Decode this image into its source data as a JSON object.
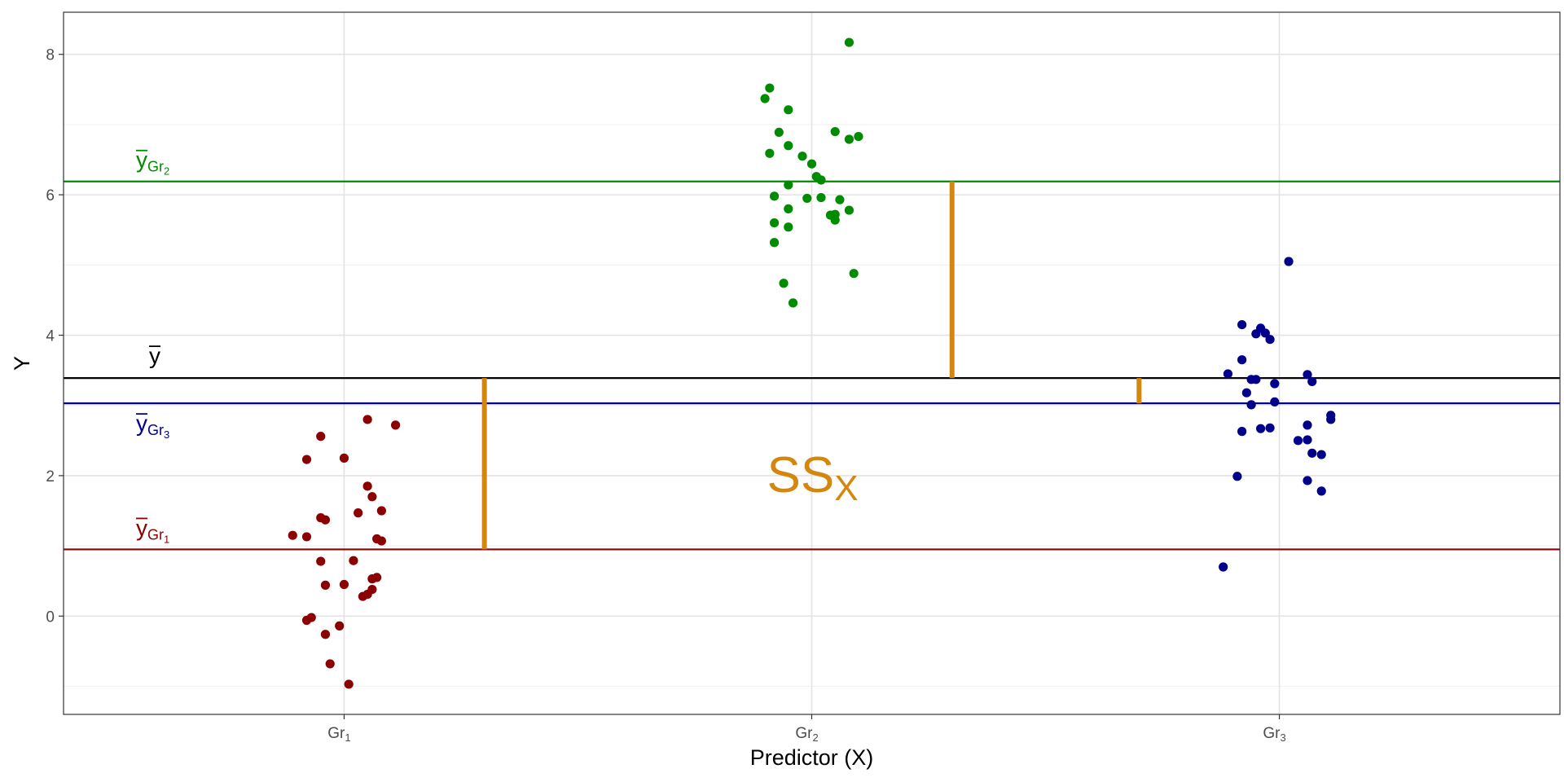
{
  "chart_data": {
    "type": "scatter",
    "title": "",
    "xlabel": "Predictor (X)",
    "ylabel": "Y",
    "ylim": [
      -1.4,
      8.6
    ],
    "yticks": [
      0,
      2,
      4,
      6,
      8
    ],
    "grid": true,
    "categories": [
      {
        "base": "Gr",
        "sub": "1"
      },
      {
        "base": "Gr",
        "sub": "2"
      },
      {
        "base": "Gr",
        "sub": "3"
      }
    ],
    "grand_mean": {
      "value": 3.39,
      "color": "#000000",
      "label": "y"
    },
    "groups": [
      {
        "id": "Gr1",
        "color": "#8B0000",
        "mean": 0.95,
        "mean_label": {
          "base": "y",
          "sub": "Gr",
          "subsub": "1"
        },
        "points": [
          [
            -0.11,
            1.15
          ],
          [
            -0.08,
            1.13
          ],
          [
            0.05,
            2.8
          ],
          [
            0.11,
            2.72
          ],
          [
            -0.08,
            2.23
          ],
          [
            -0.05,
            2.56
          ],
          [
            0.0,
            2.25
          ],
          [
            0.05,
            1.85
          ],
          [
            0.06,
            1.7
          ],
          [
            -0.05,
            1.4
          ],
          [
            -0.04,
            1.37
          ],
          [
            0.03,
            1.47
          ],
          [
            0.08,
            1.5
          ],
          [
            0.07,
            1.1
          ],
          [
            0.08,
            1.07
          ],
          [
            -0.05,
            0.78
          ],
          [
            0.02,
            0.79
          ],
          [
            -0.04,
            0.44
          ],
          [
            0.0,
            0.45
          ],
          [
            0.06,
            0.53
          ],
          [
            0.07,
            0.55
          ],
          [
            0.04,
            0.28
          ],
          [
            0.05,
            0.31
          ],
          [
            0.06,
            0.38
          ],
          [
            -0.08,
            -0.06
          ],
          [
            -0.07,
            -0.02
          ],
          [
            -0.01,
            -0.14
          ],
          [
            -0.04,
            -0.26
          ],
          [
            -0.03,
            -0.68
          ],
          [
            0.01,
            -0.97
          ]
        ]
      },
      {
        "id": "Gr2",
        "color": "#008B00",
        "mean": 6.19,
        "mean_label": {
          "base": "y",
          "sub": "Gr",
          "subsub": "2"
        },
        "points": [
          [
            0.08,
            8.17
          ],
          [
            -0.09,
            7.52
          ],
          [
            -0.1,
            7.37
          ],
          [
            -0.05,
            7.21
          ],
          [
            0.05,
            6.9
          ],
          [
            -0.07,
            6.89
          ],
          [
            0.1,
            6.83
          ],
          [
            0.08,
            6.79
          ],
          [
            -0.05,
            6.7
          ],
          [
            -0.09,
            6.59
          ],
          [
            -0.02,
            6.55
          ],
          [
            0.0,
            6.44
          ],
          [
            0.01,
            6.26
          ],
          [
            0.02,
            6.21
          ],
          [
            -0.05,
            6.14
          ],
          [
            -0.08,
            5.98
          ],
          [
            -0.01,
            5.95
          ],
          [
            0.02,
            5.96
          ],
          [
            0.06,
            5.93
          ],
          [
            -0.05,
            5.8
          ],
          [
            0.08,
            5.78
          ],
          [
            0.04,
            5.71
          ],
          [
            0.05,
            5.72
          ],
          [
            0.05,
            5.64
          ],
          [
            -0.08,
            5.6
          ],
          [
            -0.05,
            5.54
          ],
          [
            -0.08,
            5.32
          ],
          [
            0.09,
            4.88
          ],
          [
            -0.06,
            4.74
          ],
          [
            -0.04,
            4.46
          ]
        ]
      },
      {
        "id": "Gr3",
        "color": "#00008B",
        "mean": 3.03,
        "mean_label": {
          "base": "y",
          "sub": "Gr",
          "subsub": "3"
        },
        "points": [
          [
            0.02,
            5.05
          ],
          [
            -0.08,
            4.15
          ],
          [
            -0.04,
            4.1
          ],
          [
            -0.05,
            4.02
          ],
          [
            -0.03,
            4.03
          ],
          [
            -0.02,
            3.94
          ],
          [
            -0.08,
            3.65
          ],
          [
            -0.11,
            3.45
          ],
          [
            0.06,
            3.44
          ],
          [
            -0.06,
            3.37
          ],
          [
            -0.05,
            3.37
          ],
          [
            0.07,
            3.34
          ],
          [
            -0.01,
            3.31
          ],
          [
            -0.07,
            3.18
          ],
          [
            -0.01,
            3.05
          ],
          [
            -0.06,
            3.01
          ],
          [
            0.11,
            2.86
          ],
          [
            0.11,
            2.8
          ],
          [
            0.06,
            2.72
          ],
          [
            -0.02,
            2.68
          ],
          [
            -0.04,
            2.67
          ],
          [
            -0.08,
            2.63
          ],
          [
            0.04,
            2.5
          ],
          [
            0.06,
            2.51
          ],
          [
            0.07,
            2.32
          ],
          [
            0.09,
            2.3
          ],
          [
            -0.09,
            1.99
          ],
          [
            0.06,
            1.93
          ],
          [
            0.09,
            1.78
          ],
          [
            -0.12,
            0.7
          ]
        ]
      }
    ],
    "ss_segments": [
      {
        "x": 1.3,
        "from": 0.95,
        "to": 3.39
      },
      {
        "x": 2.3,
        "from": 3.39,
        "to": 6.19
      },
      {
        "x": 2.7,
        "from": 3.03,
        "to": 3.39
      }
    ],
    "ss_label": {
      "base": "SS",
      "sub": "X",
      "x": 2.0,
      "y": 2.0
    },
    "ss_color": "#D4870F"
  }
}
